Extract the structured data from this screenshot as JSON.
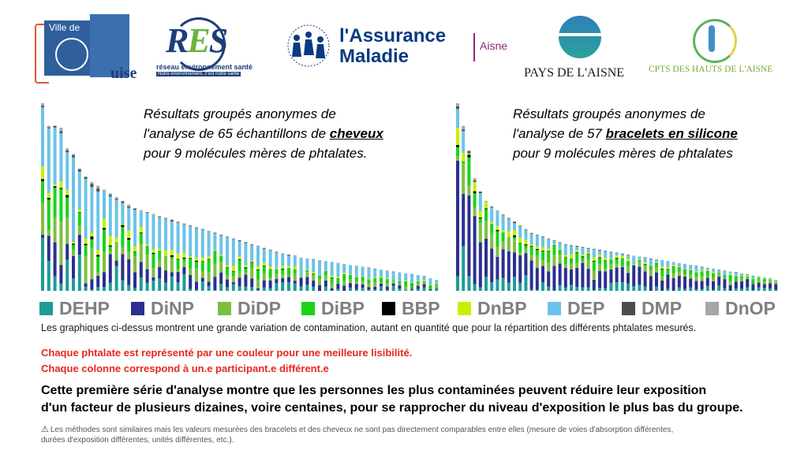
{
  "logos": {
    "guise": {
      "line1": "Ville de",
      "line2": "uise"
    },
    "res": {
      "name": "RES",
      "sub1": "réseau environnement santé",
      "sub2": "Notre environnement, c'est notre santé"
    },
    "assurance": {
      "line1": "l'Assurance",
      "line2": "Maladie",
      "dept": "Aisne"
    },
    "pays": {
      "name": "PAYS DE L'AISNE"
    },
    "cpts": {
      "name": "CPTS DES HAUTS DE L'AISNE"
    }
  },
  "titles": {
    "hair": {
      "l1": "Résultats groupés anonymes de",
      "l2a": "l'analyse de 65 échantillons de ",
      "l2b": "cheveux",
      "l3": "pour 9 molécules mères de phtalates."
    },
    "bracelet": {
      "l1": "Résultats groupés anonymes de",
      "l2a": "l'analyse de 57 ",
      "l2b": "bracelets en silicone",
      "l3": "pour 9 molécules mères de phtalates"
    }
  },
  "legend": [
    {
      "label": "DEHP",
      "color": "#1f9c94"
    },
    {
      "label": "DiNP",
      "color": "#2b2f8f"
    },
    {
      "label": "DiDP",
      "color": "#7fbf3f"
    },
    {
      "label": "DiBP",
      "color": "#19d419"
    },
    {
      "label": "BBP",
      "color": "#000000"
    },
    {
      "label": "DnBP",
      "color": "#c8f000"
    },
    {
      "label": "DEP",
      "color": "#6cc3e8"
    },
    {
      "label": "DMP",
      "color": "#4d4d4d"
    },
    {
      "label": "DnOP",
      "color": "#a6a6a6"
    }
  ],
  "text": {
    "desc": "Les graphiques ci-dessus montrent une grande variation de contamination,  autant en quantité  que pour la répartition des différents phtalates mesurés.",
    "red1": "Chaque phtalate est représenté par une couleur pour une meilleure lisibilité.",
    "red2": "Chaque colonne correspond  à un.e participant.e  différent.e",
    "concl1": "Cette première série d'analyse  montre que les personnes les plus contaminées  peuvent réduire leur exposition",
    "concl2": "d'un facteur de plusieurs dizaines, voire centaines, pour se rapprocher du niveau d'exposition le plus bas du groupe.",
    "warn_icon": "⚠",
    "note1": "Les méthodes  sont similaires mais les valeurs mesurées des bracelets et des cheveux ne sont pas directement comparables entre elles (mesure de voies d'absorption différentes,",
    "note2": "durées d'exposition différentes, unités différentes, etc.)."
  },
  "chart_data": [
    {
      "type": "bar",
      "stacked": true,
      "sample": "cheveux",
      "n_columns": 65,
      "series_order": [
        "DEHP",
        "DiNP",
        "DiDP",
        "DiBP",
        "BBP",
        "DnBP",
        "DEP",
        "DMP",
        "DnOP"
      ],
      "totals": [
        100,
        88,
        88,
        87,
        76,
        73,
        65,
        61,
        58,
        56,
        54,
        52,
        50,
        48,
        46,
        44,
        43,
        42,
        41,
        40,
        39,
        38,
        37,
        36,
        35,
        34,
        33,
        32,
        31,
        30,
        29,
        28,
        27,
        26,
        25,
        24,
        23,
        22,
        21,
        20,
        19.5,
        19,
        18,
        17.5,
        17,
        16.5,
        16,
        15.5,
        15,
        14.5,
        14,
        13.5,
        13,
        12.5,
        12,
        11.5,
        11,
        10.5,
        10,
        9.5,
        9,
        8.5,
        8,
        7,
        6
      ],
      "ylim": [
        0,
        100
      ],
      "xlabel": "",
      "ylabel": ""
    },
    {
      "type": "bar",
      "stacked": true,
      "sample": "bracelets en silicone",
      "n_columns": 57,
      "series_order": [
        "DEHP",
        "DiNP",
        "DiDP",
        "DiBP",
        "BBP",
        "DnBP",
        "DEP",
        "DMP",
        "DnOP"
      ],
      "totals": [
        100,
        88,
        75,
        60,
        53,
        48,
        45,
        43,
        41,
        39,
        37,
        35,
        33,
        31,
        30,
        29,
        28,
        27,
        26,
        25,
        24.5,
        24,
        23.5,
        23,
        22.5,
        22,
        21.5,
        21,
        20.5,
        20,
        19.5,
        19,
        18.5,
        18,
        17.5,
        17,
        16.5,
        16,
        15.5,
        15,
        14.5,
        14,
        13.5,
        13,
        12.5,
        12,
        11.5,
        11,
        10.5,
        10,
        9.5,
        9,
        8.5,
        8,
        7.5,
        7,
        6
      ],
      "ylim": [
        0,
        100
      ],
      "xlabel": "",
      "ylabel": ""
    }
  ]
}
